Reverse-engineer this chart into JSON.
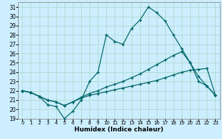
{
  "xlabel": "Humidex (Indice chaleur)",
  "background_color": "#cceeff",
  "grid_color": "#aaddcc",
  "line_color": "#006666",
  "xlim": [
    -0.5,
    23.5
  ],
  "ylim": [
    19,
    31.5
  ],
  "yticks": [
    19,
    20,
    21,
    22,
    23,
    24,
    25,
    26,
    27,
    28,
    29,
    30,
    31
  ],
  "xticks": [
    0,
    1,
    2,
    3,
    4,
    5,
    6,
    7,
    8,
    9,
    10,
    11,
    12,
    13,
    14,
    15,
    16,
    17,
    18,
    19,
    20,
    21,
    22,
    23
  ],
  "line1_x": [
    0,
    1,
    2,
    3,
    4,
    5,
    6,
    7,
    8,
    9,
    10,
    11,
    12,
    13,
    14,
    15,
    16,
    17,
    18,
    19,
    20,
    21,
    22,
    23
  ],
  "line1_y": [
    22.0,
    21.8,
    21.4,
    20.5,
    20.3,
    19.0,
    19.8,
    21.0,
    23.0,
    24.0,
    28.0,
    27.3,
    27.0,
    28.7,
    29.6,
    31.0,
    30.4,
    29.5,
    28.0,
    26.5,
    25.0,
    23.0,
    22.5,
    21.5
  ],
  "line2_x": [
    0,
    1,
    2,
    3,
    4,
    5,
    6,
    7,
    8,
    9,
    10,
    11,
    12,
    13,
    14,
    15,
    16,
    17,
    18,
    19,
    20,
    21,
    22,
    23
  ],
  "line2_y": [
    22.0,
    21.8,
    21.4,
    21.0,
    20.8,
    20.4,
    20.8,
    21.3,
    21.7,
    22.0,
    22.4,
    22.7,
    23.0,
    23.4,
    23.8,
    24.3,
    24.8,
    25.3,
    25.8,
    26.2,
    25.0,
    23.5,
    22.5,
    21.5
  ],
  "line3_x": [
    0,
    1,
    2,
    3,
    4,
    5,
    6,
    7,
    8,
    9,
    10,
    11,
    12,
    13,
    14,
    15,
    16,
    17,
    18,
    19,
    20,
    21,
    22,
    23
  ],
  "line3_y": [
    22.0,
    21.8,
    21.4,
    21.0,
    20.8,
    20.4,
    20.8,
    21.2,
    21.5,
    21.7,
    21.9,
    22.1,
    22.3,
    22.5,
    22.7,
    22.9,
    23.1,
    23.4,
    23.7,
    24.0,
    24.2,
    24.3,
    24.4,
    21.5
  ]
}
